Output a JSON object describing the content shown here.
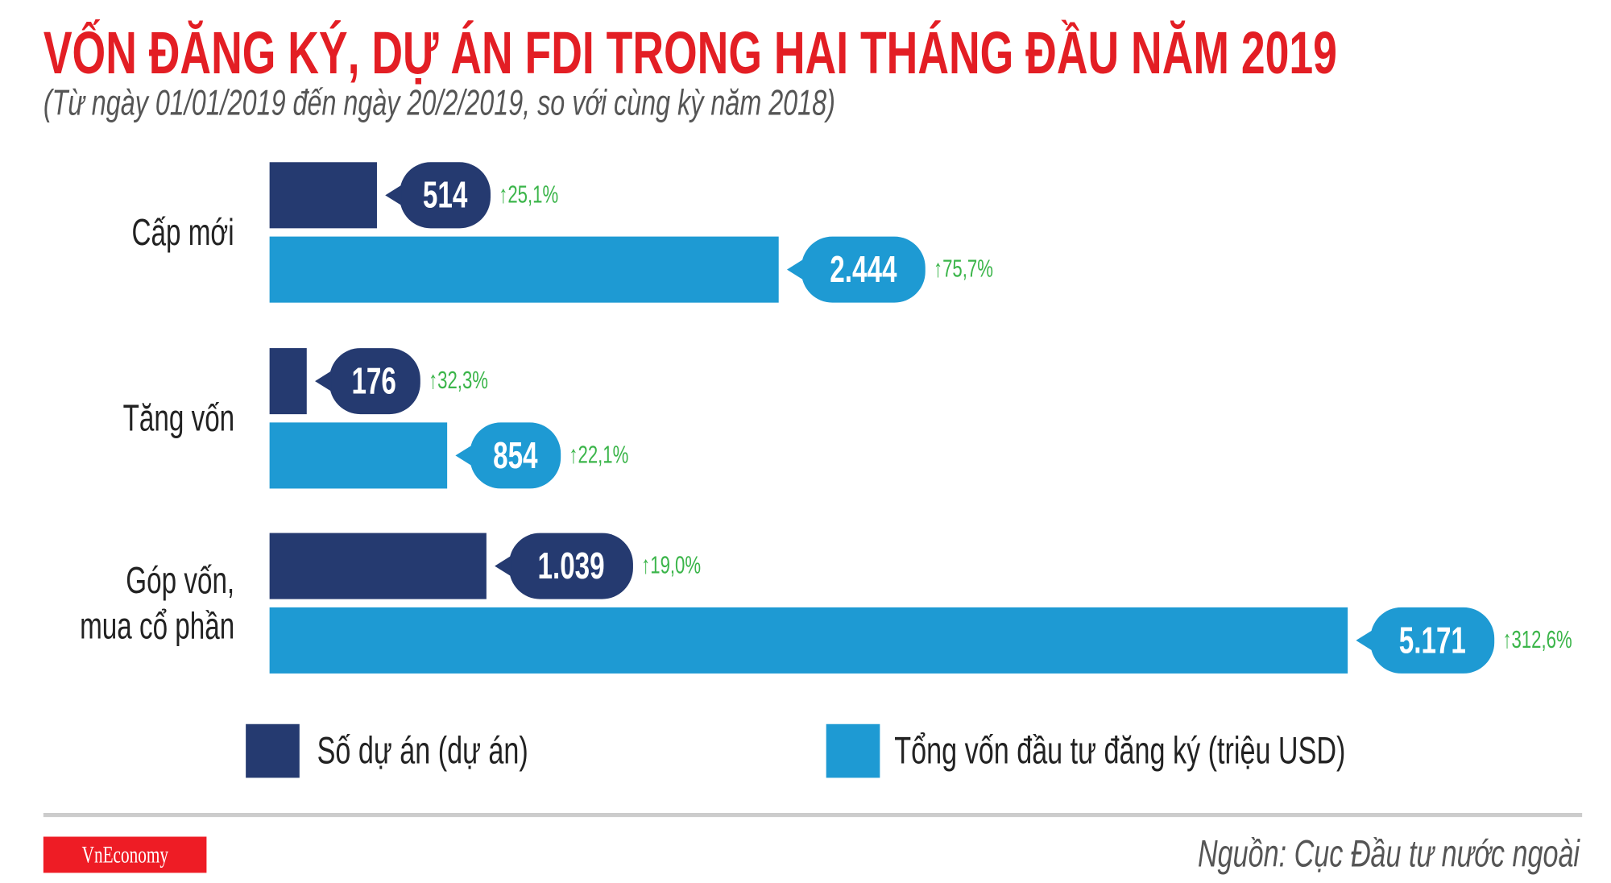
{
  "colors": {
    "title": "#e31e24",
    "projects": "#253a70",
    "capital": "#1e9ad3",
    "increase": "#3bb54a"
  },
  "chart_data": {
    "type": "bar",
    "orientation": "horizontal",
    "title": "VỐN ĐĂNG KÝ, DỰ ÁN FDI TRONG HAI THÁNG ĐẦU NĂM 2019",
    "subtitle": "(Từ ngày 01/01/2019 đến ngày 20/2/2019, so với cùng kỳ năm 2018)",
    "categories": [
      "Cấp mới",
      "Tăng vốn",
      "Góp vốn,\nmua cổ phần"
    ],
    "series": [
      {
        "name": "Số dự án (dự án)",
        "values": [
          514,
          176,
          1039
        ],
        "labels": [
          "514",
          "176",
          "1.039"
        ],
        "changes": [
          "25,1%",
          "32,3%",
          "19,0%"
        ]
      },
      {
        "name": "Tổng vốn đầu tư đăng ký (triệu USD)",
        "values": [
          2444,
          854,
          5171
        ],
        "labels": [
          "2.444",
          "854",
          "5.171"
        ],
        "changes": [
          "75,7%",
          "22,1%",
          "312,6%"
        ]
      }
    ],
    "change_icon": "arrow-up-icon",
    "grid": false,
    "legend": "bottom"
  },
  "footer": {
    "logo": "VnEconomy",
    "source": "Nguồn: Cục Đầu tư nước ngoài"
  }
}
